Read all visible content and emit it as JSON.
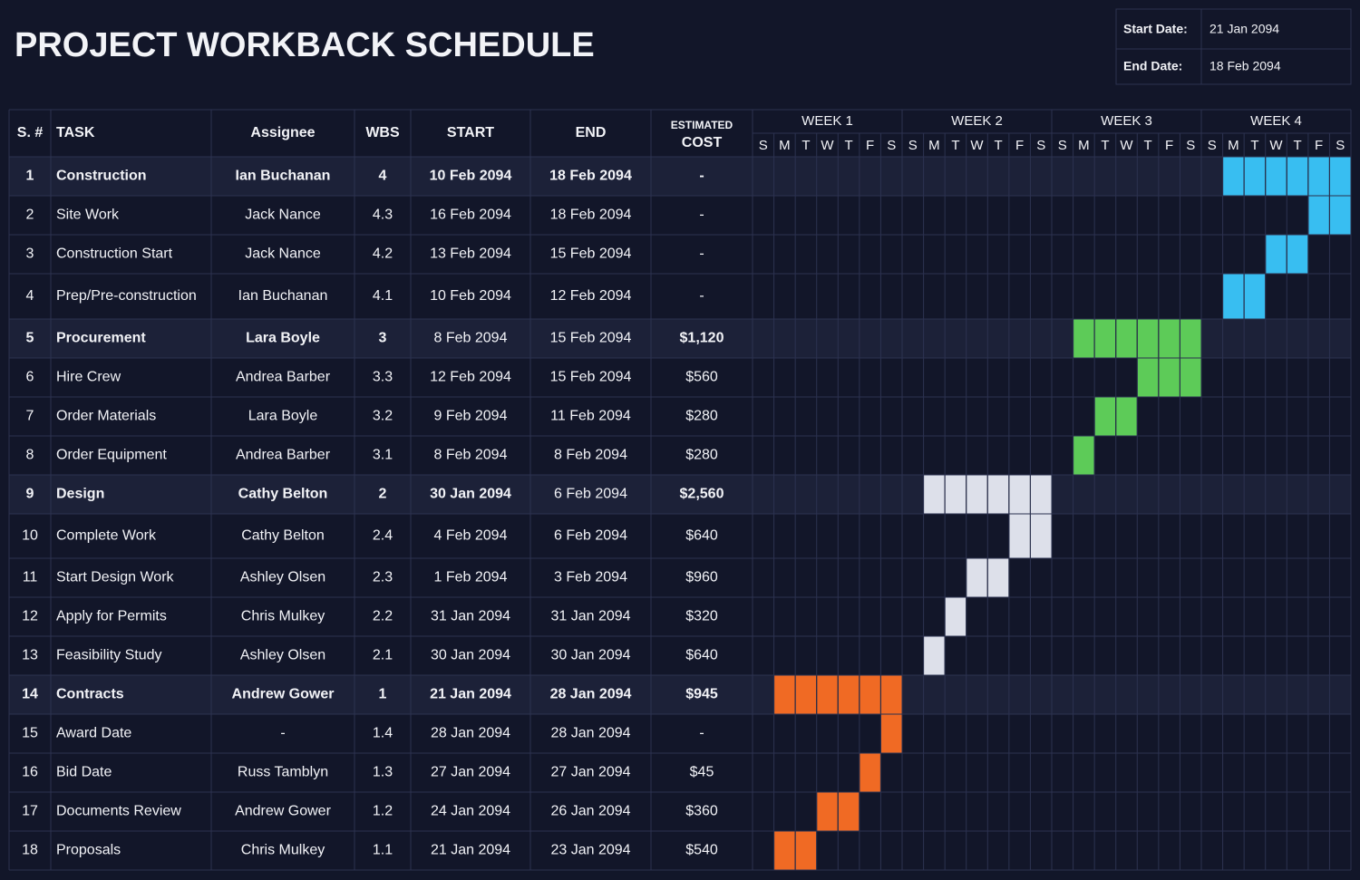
{
  "header": {
    "title": "PROJECT WORKBACK SCHEDULE",
    "start_label": "Start Date:",
    "start_date": "21 Jan 2094",
    "end_label": "End Date:",
    "end_date": "18 Feb 2094"
  },
  "table": {
    "columns": [
      "S. #",
      "TASK",
      "Assignee",
      "WBS",
      "START",
      "END"
    ],
    "cost_header": [
      "ESTIMATED",
      "COST"
    ],
    "weeks": [
      "WEEK 1",
      "WEEK 2",
      "WEEK 3",
      "WEEK 4"
    ],
    "days": [
      "S",
      "M",
      "T",
      "W",
      "T",
      "F",
      "S"
    ],
    "rows": [
      [
        "1",
        "Construction",
        "Ian Buchanan",
        "4",
        "10 Feb 2094",
        "18 Feb 2094",
        "-"
      ],
      [
        "2",
        "Site Work",
        "Jack Nance",
        "4.3",
        "16 Feb 2094",
        "18 Feb 2094",
        "-"
      ],
      [
        "3",
        "Construction Start",
        "Jack Nance",
        "4.2",
        "13 Feb 2094",
        "15 Feb 2094",
        "-"
      ],
      [
        "4",
        "Prep/Pre-construction",
        "Ian Buchanan",
        "4.1",
        "10 Feb 2094",
        "12 Feb 2094",
        "-"
      ],
      [
        "5",
        "Procurement",
        "Lara Boyle",
        "3",
        "8 Feb 2094",
        "15 Feb 2094",
        "$1,120"
      ],
      [
        "6",
        "Hire Crew",
        "Andrea Barber",
        "3.3",
        "12 Feb 2094",
        "15 Feb 2094",
        "$560"
      ],
      [
        "7",
        "Order Materials",
        "Lara Boyle",
        "3.2",
        "9 Feb 2094",
        "11 Feb 2094",
        "$280"
      ],
      [
        "8",
        "Order Equipment",
        "Andrea Barber",
        "3.1",
        "8 Feb 2094",
        "8 Feb 2094",
        "$280"
      ],
      [
        "9",
        "Design",
        "Cathy Belton",
        "2",
        "30 Jan 2094",
        "6 Feb 2094",
        "$2,560"
      ],
      [
        "10",
        "Complete Work",
        "Cathy Belton",
        "2.4",
        "4 Feb 2094",
        "6 Feb 2094",
        "$640"
      ],
      [
        "11",
        "Start Design Work",
        "Ashley Olsen",
        "2.3",
        "1 Feb 2094",
        "3 Feb 2094",
        "$960"
      ],
      [
        "12",
        "Apply for Permits",
        "Chris Mulkey",
        "2.2",
        "31 Jan 2094",
        "31 Jan 2094",
        "$320"
      ],
      [
        "13",
        "Feasibility Study",
        "Ashley Olsen",
        "2.1",
        "30 Jan 2094",
        "30 Jan 2094",
        "$640"
      ],
      [
        "14",
        "Contracts",
        "Andrew Gower",
        "1",
        "21 Jan 2094",
        "28 Jan 2094",
        "$945"
      ],
      [
        "15",
        "Award Date",
        "-",
        "1.4",
        "28 Jan 2094",
        "28 Jan 2094",
        "-"
      ],
      [
        "16",
        "Bid Date",
        "Russ Tamblyn",
        "1.3",
        "27 Jan 2094",
        "27 Jan 2094",
        "$45"
      ],
      [
        "17",
        "Documents Review",
        "Andrew Gower",
        "1.2",
        "24 Jan 2094",
        "26 Jan 2094",
        "$360"
      ],
      [
        "18",
        "Proposals",
        "Chris Mulkey",
        "1.1",
        "21 Jan 2094",
        "23 Jan 2094",
        "$540"
      ]
    ]
  }
}
